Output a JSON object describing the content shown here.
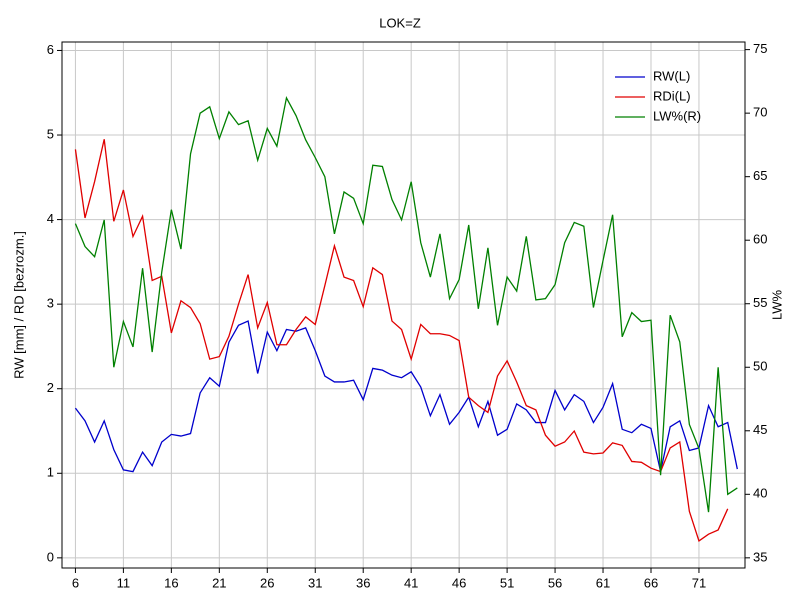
{
  "chart_data": {
    "type": "line",
    "title": "LOK=Z",
    "y_label": "RW [mm] / RD [bezrozm.]",
    "y2_label": "LW%",
    "x": [
      6,
      7,
      8,
      9,
      10,
      11,
      12,
      13,
      14,
      15,
      16,
      17,
      18,
      19,
      20,
      21,
      22,
      23,
      24,
      25,
      26,
      27,
      28,
      29,
      30,
      31,
      32,
      33,
      34,
      35,
      36,
      37,
      38,
      39,
      40,
      41,
      42,
      43,
      44,
      45,
      46,
      47,
      48,
      49,
      50,
      51,
      52,
      53,
      54,
      55,
      56,
      57,
      58,
      59,
      60,
      61,
      62,
      63,
      64,
      65,
      66,
      67,
      68,
      69,
      70,
      71,
      72,
      73,
      74,
      75
    ],
    "xlim": [
      4.6,
      75.8
    ],
    "xticks": [
      6,
      11,
      16,
      21,
      26,
      31,
      36,
      41,
      46,
      51,
      56,
      61,
      66,
      71
    ],
    "ylim": [
      -0.12,
      6.1
    ],
    "yticks": [
      0,
      1,
      2,
      3,
      4,
      5,
      6
    ],
    "y2lim": [
      34.2,
      75.6
    ],
    "y2ticks": [
      35,
      40,
      45,
      50,
      55,
      60,
      65,
      70,
      75
    ],
    "grid": true,
    "legend": "upper right",
    "series": [
      {
        "name": "RW(L)",
        "color": "#0000cc",
        "values": [
          1.77,
          1.62,
          1.37,
          1.62,
          1.28,
          1.04,
          1.02,
          1.25,
          1.09,
          1.37,
          1.46,
          1.44,
          1.47,
          1.95,
          2.13,
          2.03,
          2.55,
          2.75,
          2.8,
          2.18,
          2.67,
          2.45,
          2.7,
          2.68,
          2.72,
          2.45,
          2.15,
          2.08,
          2.08,
          2.1,
          1.87,
          2.24,
          2.22,
          2.16,
          2.13,
          2.2,
          2.02,
          1.68,
          1.93,
          1.58,
          1.72,
          1.9,
          1.55,
          1.85,
          1.45,
          1.52,
          1.82,
          1.75,
          1.6,
          1.6,
          1.98,
          1.75,
          1.93,
          1.85,
          1.6,
          1.78,
          2.06,
          1.52,
          1.48,
          1.58,
          1.53,
          1.02,
          1.55,
          1.62,
          1.27,
          1.3,
          1.8,
          1.55,
          1.6,
          1.05
        ]
      },
      {
        "name": "RDi(L)",
        "color": "#e00000",
        "values": [
          4.83,
          4.02,
          4.45,
          4.95,
          3.98,
          4.35,
          3.8,
          4.04,
          3.28,
          3.33,
          2.66,
          3.04,
          2.96,
          2.77,
          2.35,
          2.38,
          2.62,
          3.0,
          3.35,
          2.72,
          3.02,
          2.52,
          2.52,
          2.7,
          2.85,
          2.76,
          3.22,
          3.69,
          3.32,
          3.28,
          2.97,
          3.43,
          3.35,
          2.8,
          2.7,
          2.35,
          2.76,
          2.65,
          2.65,
          2.63,
          2.57,
          1.9,
          1.8,
          1.72,
          2.15,
          2.33,
          2.08,
          1.8,
          1.75,
          1.45,
          1.32,
          1.37,
          1.5,
          1.25,
          1.23,
          1.24,
          1.36,
          1.33,
          1.14,
          1.13,
          1.06,
          1.02,
          1.3,
          1.37,
          0.55,
          0.2,
          0.28,
          0.33,
          0.58,
          null
        ]
      },
      {
        "name": "LW%(R)",
        "color": "#008000",
        "axis": "y2",
        "values": [
          61.3,
          59.5,
          58.7,
          61.6,
          50,
          53.6,
          51.6,
          57.8,
          51.2,
          57.5,
          62.4,
          59.3,
          66.8,
          70,
          70.5,
          68,
          70.1,
          69.1,
          69.4,
          66.3,
          68.8,
          67.4,
          71.2,
          69.8,
          67.9,
          66.5,
          65,
          60.5,
          63.8,
          63.3,
          61.3,
          65.9,
          65.8,
          63.2,
          61.6,
          64.6,
          59.8,
          57.1,
          60.5,
          55.4,
          56.9,
          61.2,
          54.6,
          59.4,
          53.3,
          57.1,
          56,
          60.3,
          55.3,
          55.4,
          56.5,
          59.8,
          61.4,
          61.1,
          54.7,
          58.4,
          62,
          52.4,
          54.3,
          53.6,
          53.7,
          41.5,
          54.1,
          52,
          45.5,
          43.6,
          38.6,
          50,
          40,
          40.5
        ]
      }
    ]
  }
}
